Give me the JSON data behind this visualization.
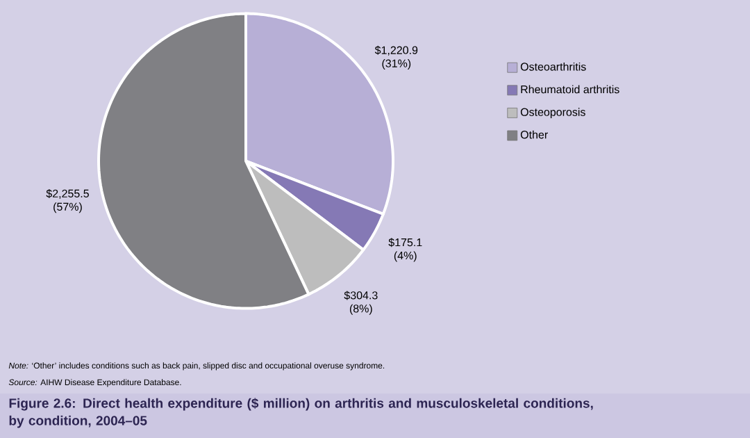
{
  "chart_data": {
    "type": "pie",
    "title": "Figure 2.6: Direct health expenditure ($ million) on arthritis and musculoskeletal conditions, by condition, 2004–05",
    "categories": [
      "Osteoarthritis",
      "Rheumatoid arthritis",
      "Osteoporosis",
      "Other"
    ],
    "values": [
      1220.9,
      175.1,
      304.3,
      2255.5
    ],
    "colors": [
      "#b7afd6",
      "#8579b5",
      "#bdbdbd",
      "#808084"
    ],
    "value_labels": [
      "$1,220.9 (31%)",
      "$175.1 (4%)",
      "$304.3 (8%)",
      "$2,255.5 (57%)"
    ],
    "legend": "top right",
    "annotations": [
      "*Note:* ‘Other’ includes conditions such as back pain, slipped disc and occupational overuse syndrome.",
      "*Source:* AIHW Disease Expenditure Database."
    ]
  }
}
